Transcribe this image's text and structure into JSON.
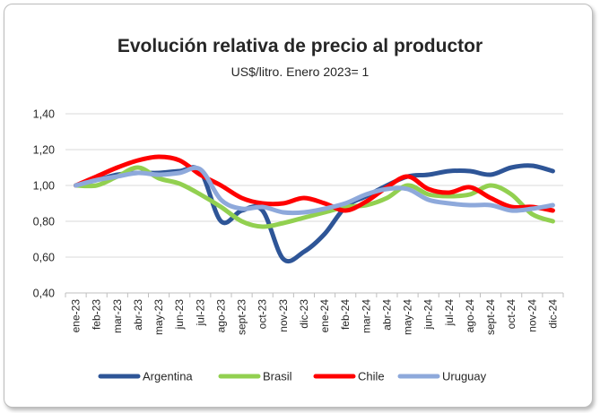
{
  "chart_data": {
    "type": "line",
    "title": "Evolución relativa de precio al productor",
    "subtitle": "US$/litro. Enero 2023= 1",
    "categories": [
      "ene-23",
      "feb-23",
      "mar-23",
      "abr-23",
      "may-23",
      "jun-23",
      "jul-23",
      "ago-23",
      "sept-23",
      "oct-23",
      "nov-23",
      "dic-23",
      "ene-24",
      "feb-24",
      "mar-24",
      "abr-24",
      "may-24",
      "jun-24",
      "jul-24",
      "ago-24",
      "sept-24",
      "oct-24",
      "nov-24",
      "dic-24"
    ],
    "yticks": [
      "1,40",
      "1,20",
      "1,00",
      "0,80",
      "0,60",
      "0,40"
    ],
    "ylim": [
      0.4,
      1.4
    ],
    "grid": true,
    "legend_position": "bottom",
    "series": [
      {
        "name": "Argentina",
        "color": "#2e5597",
        "values": [
          1.0,
          1.03,
          1.06,
          1.07,
          1.07,
          1.08,
          1.08,
          0.8,
          0.86,
          0.86,
          0.59,
          0.63,
          0.73,
          0.88,
          0.94,
          1.0,
          1.05,
          1.06,
          1.08,
          1.08,
          1.06,
          1.1,
          1.11,
          1.08
        ]
      },
      {
        "name": "Brasil",
        "color": "#92d050",
        "values": [
          1.0,
          1.0,
          1.05,
          1.1,
          1.04,
          1.01,
          0.95,
          0.88,
          0.8,
          0.77,
          0.79,
          0.82,
          0.85,
          0.88,
          0.89,
          0.93,
          1.0,
          0.95,
          0.94,
          0.95,
          1.0,
          0.95,
          0.84,
          0.8
        ]
      },
      {
        "name": "Chile",
        "color": "#ff0000",
        "values": [
          1.0,
          1.05,
          1.1,
          1.14,
          1.16,
          1.14,
          1.06,
          1.0,
          0.93,
          0.9,
          0.9,
          0.93,
          0.9,
          0.86,
          0.91,
          0.99,
          1.05,
          0.98,
          0.96,
          0.99,
          0.93,
          0.88,
          0.88,
          0.86
        ]
      },
      {
        "name": "Uruguay",
        "color": "#8ea9db",
        "values": [
          1.0,
          1.03,
          1.05,
          1.07,
          1.06,
          1.07,
          1.09,
          0.92,
          0.87,
          0.88,
          0.85,
          0.85,
          0.87,
          0.9,
          0.95,
          0.98,
          0.98,
          0.92,
          0.9,
          0.89,
          0.89,
          0.86,
          0.87,
          0.89
        ]
      }
    ]
  }
}
